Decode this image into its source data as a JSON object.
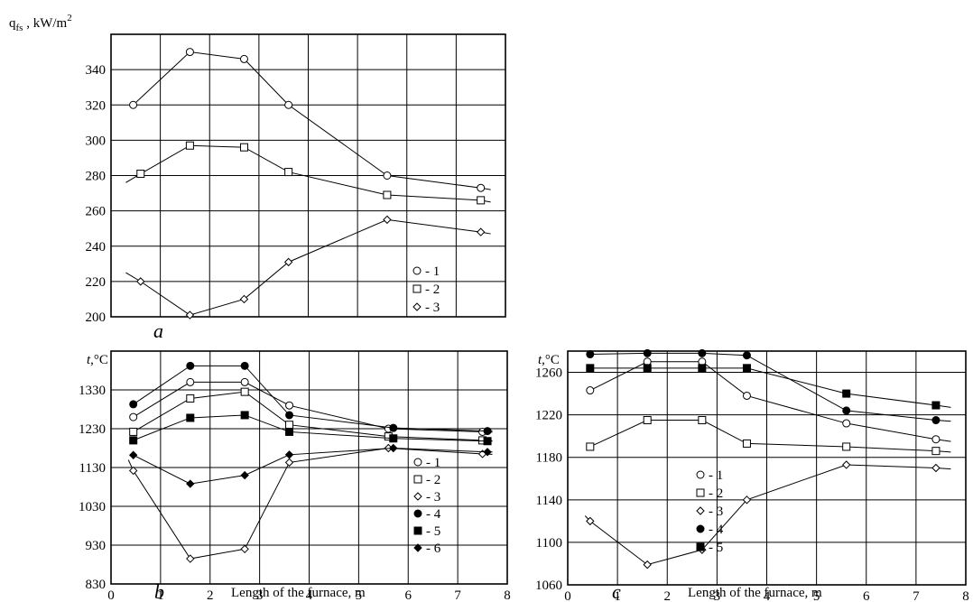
{
  "chart_data": [
    {
      "id": "a",
      "type": "line",
      "panel_label": "a",
      "ylabel": "q_fs , kW/m²",
      "ylabel_main": "q",
      "ylabel_sub": "fs",
      "ylabel_rest": " , kW/m",
      "ylabel_sup": "2",
      "xlabel": "",
      "xlim": [
        0,
        8
      ],
      "ylim": [
        200,
        360
      ],
      "x_ticks": [],
      "y_ticks": [
        200,
        220,
        240,
        260,
        280,
        300,
        320,
        340
      ],
      "y_tick_labels": [
        "200",
        "220",
        "240",
        "260",
        "280",
        "300",
        "320",
        "340"
      ],
      "grid": true,
      "legend_position": "bottom-right",
      "legend_labels": [
        "- 1",
        "- 2",
        "- 3"
      ],
      "series": [
        {
          "name": "1",
          "marker": "circle-open",
          "x": [
            0.45,
            1.6,
            2.7,
            3.6,
            5.6,
            7.5
          ],
          "y": [
            320,
            350,
            346,
            320,
            280,
            273
          ],
          "line_x": [
            0.45,
            1.6,
            2.7,
            3.6,
            5.6,
            7.5,
            7.7
          ],
          "line_y": [
            320,
            350,
            346,
            320,
            280,
            273,
            272
          ]
        },
        {
          "name": "2",
          "marker": "square-open",
          "x": [
            0.6,
            1.6,
            2.7,
            3.6,
            5.6,
            7.5
          ],
          "y": [
            281,
            297,
            296,
            282,
            269,
            266
          ],
          "line_x": [
            0.3,
            0.6,
            1.6,
            2.7,
            3.6,
            5.6,
            7.5,
            7.7
          ],
          "line_y": [
            276,
            281,
            297,
            296,
            282,
            269,
            266,
            265
          ]
        },
        {
          "name": "3",
          "marker": "diamond-open",
          "x": [
            0.6,
            1.6,
            2.7,
            3.6,
            5.6,
            7.5
          ],
          "y": [
            220,
            201,
            210,
            231,
            255,
            248
          ],
          "line_x": [
            0.3,
            0.6,
            1.6,
            2.7,
            3.6,
            5.6,
            7.5,
            7.7
          ],
          "line_y": [
            225,
            220,
            201,
            210,
            231,
            255,
            248,
            247
          ]
        }
      ]
    },
    {
      "id": "b",
      "type": "line",
      "panel_label": "b",
      "ylabel": "t,°C",
      "ylabel_main": "t",
      "ylabel_rest": ",°C",
      "xlabel": "Length of the furnace, m",
      "xlim": [
        0,
        8
      ],
      "ylim": [
        830,
        1430
      ],
      "x_ticks": [
        0,
        1,
        2,
        3,
        4,
        5,
        6,
        7,
        8
      ],
      "x_tick_labels": [
        "0",
        "1",
        "2",
        "3",
        "4",
        "5",
        "6",
        "7",
        "8"
      ],
      "y_ticks": [
        830,
        930,
        1030,
        1130,
        1230,
        1330
      ],
      "y_tick_labels": [
        "830",
        "930",
        "1030",
        "1130",
        "1230",
        "1330"
      ],
      "grid": true,
      "legend_position": "bottom-right",
      "legend_labels": [
        "- 1",
        "- 2",
        "- 3",
        "- 4",
        "- 5",
        "- 6"
      ],
      "series": [
        {
          "name": "1",
          "marker": "circle-open",
          "x": [
            0.45,
            1.6,
            2.7,
            3.6,
            5.6,
            7.5
          ],
          "y": [
            1260,
            1350,
            1350,
            1290,
            1230,
            1222
          ],
          "line_x": [
            0.45,
            1.6,
            2.7,
            3.6,
            5.6,
            7.5,
            7.7
          ],
          "line_y": [
            1260,
            1350,
            1350,
            1290,
            1230,
            1222,
            1221
          ]
        },
        {
          "name": "2",
          "marker": "square-open",
          "x": [
            0.45,
            1.6,
            2.7,
            3.6,
            5.6,
            7.5
          ],
          "y": [
            1222,
            1308,
            1325,
            1240,
            1210,
            1200
          ],
          "line_x": [
            0.45,
            1.6,
            2.7,
            3.6,
            5.6,
            7.5,
            7.7
          ],
          "line_y": [
            1222,
            1308,
            1325,
            1240,
            1210,
            1200,
            1199
          ]
        },
        {
          "name": "3",
          "marker": "diamond-open",
          "x": [
            0.45,
            1.6,
            2.7,
            3.6,
            5.6,
            7.5
          ],
          "y": [
            1122,
            895,
            920,
            1143,
            1180,
            1165
          ],
          "line_x": [
            0.35,
            0.45,
            1.6,
            2.7,
            3.6,
            5.6,
            7.5,
            7.7
          ],
          "line_y": [
            1150,
            1122,
            895,
            920,
            1143,
            1180,
            1165,
            1164
          ]
        },
        {
          "name": "4",
          "marker": "circle-filled",
          "x": [
            0.45,
            1.6,
            2.7,
            3.6,
            5.7,
            7.6
          ],
          "y": [
            1293,
            1392,
            1392,
            1265,
            1232,
            1224
          ],
          "line_x": [
            0.45,
            1.6,
            2.7,
            3.6,
            5.7,
            7.6,
            7.7
          ],
          "line_y": [
            1293,
            1392,
            1392,
            1265,
            1232,
            1224,
            1224
          ]
        },
        {
          "name": "5",
          "marker": "square-filled",
          "x": [
            0.45,
            1.6,
            2.7,
            3.6,
            5.7,
            7.6
          ],
          "y": [
            1200,
            1258,
            1265,
            1222,
            1205,
            1198
          ],
          "line_x": [
            0.45,
            1.6,
            2.7,
            3.6,
            5.7,
            7.6,
            7.7
          ],
          "line_y": [
            1200,
            1258,
            1265,
            1222,
            1205,
            1198,
            1198
          ]
        },
        {
          "name": "6",
          "marker": "diamond-filled",
          "x": [
            0.45,
            1.6,
            2.7,
            3.6,
            5.7,
            7.6
          ],
          "y": [
            1162,
            1088,
            1110,
            1163,
            1180,
            1170
          ],
          "line_x": [
            0.45,
            1.6,
            2.7,
            3.6,
            5.7,
            7.6,
            7.7
          ],
          "line_y": [
            1162,
            1088,
            1110,
            1163,
            1180,
            1170,
            1170
          ]
        }
      ]
    },
    {
      "id": "c",
      "type": "line",
      "panel_label": "c",
      "ylabel": "t,°C",
      "ylabel_main": "t",
      "ylabel_rest": ",°C",
      "xlabel": "Length of the furnace, m",
      "xlim": [
        0,
        8
      ],
      "ylim": [
        1060,
        1280
      ],
      "x_ticks": [
        0,
        1,
        2,
        3,
        4,
        5,
        6,
        7,
        8
      ],
      "x_tick_labels": [
        "0",
        "1",
        "2",
        "3",
        "4",
        "5",
        "6",
        "7",
        "8"
      ],
      "y_ticks": [
        1060,
        1100,
        1140,
        1180,
        1220,
        1260
      ],
      "y_tick_labels": [
        "1060",
        "1100",
        "1140",
        "1180",
        "1220",
        "1260"
      ],
      "grid": true,
      "legend_position": "bottom-right",
      "legend_labels": [
        "- 1",
        "- 2",
        "- 3",
        "- 4",
        "- 5"
      ],
      "series": [
        {
          "name": "1",
          "marker": "circle-open",
          "x": [
            0.45,
            1.6,
            2.7,
            3.6,
            5.6,
            7.4
          ],
          "y": [
            1243,
            1270,
            1270,
            1238,
            1212,
            1197
          ],
          "line_x": [
            0.45,
            1.6,
            2.7,
            3.6,
            5.6,
            7.4,
            7.7
          ],
          "line_y": [
            1243,
            1270,
            1270,
            1238,
            1212,
            1197,
            1195
          ]
        },
        {
          "name": "2",
          "marker": "square-open",
          "x": [
            0.45,
            1.6,
            2.7,
            3.6,
            5.6,
            7.4
          ],
          "y": [
            1190,
            1215,
            1215,
            1193,
            1190,
            1186
          ],
          "line_x": [
            0.45,
            1.6,
            2.7,
            3.6,
            5.6,
            7.4,
            7.7
          ],
          "line_y": [
            1190,
            1215,
            1215,
            1193,
            1190,
            1186,
            1185
          ]
        },
        {
          "name": "3",
          "marker": "diamond-open",
          "x": [
            0.45,
            1.6,
            2.7,
            3.6,
            5.6,
            7.4
          ],
          "y": [
            1120,
            1079,
            1093,
            1140,
            1173,
            1170
          ],
          "line_x": [
            0.35,
            0.45,
            1.6,
            2.7,
            3.6,
            5.6,
            7.4,
            7.7
          ],
          "line_y": [
            1125,
            1120,
            1079,
            1093,
            1140,
            1173,
            1170,
            1169
          ]
        },
        {
          "name": "4",
          "marker": "circle-filled",
          "x": [
            0.45,
            1.6,
            2.7,
            3.6,
            5.6,
            7.4
          ],
          "y": [
            1277,
            1278,
            1278,
            1276,
            1224,
            1215
          ],
          "line_x": [
            0.45,
            1.6,
            2.7,
            3.6,
            5.6,
            7.4,
            7.7
          ],
          "line_y": [
            1277,
            1278,
            1278,
            1276,
            1224,
            1215,
            1214
          ]
        },
        {
          "name": "5",
          "marker": "square-filled",
          "x": [
            0.45,
            1.6,
            2.7,
            3.6,
            5.6,
            7.4
          ],
          "y": [
            1264,
            1264,
            1264,
            1264,
            1240,
            1229
          ],
          "line_x": [
            0.45,
            1.6,
            2.7,
            3.6,
            5.6,
            7.4,
            7.7
          ],
          "line_y": [
            1264,
            1264,
            1264,
            1264,
            1240,
            1229,
            1227
          ]
        }
      ]
    }
  ]
}
